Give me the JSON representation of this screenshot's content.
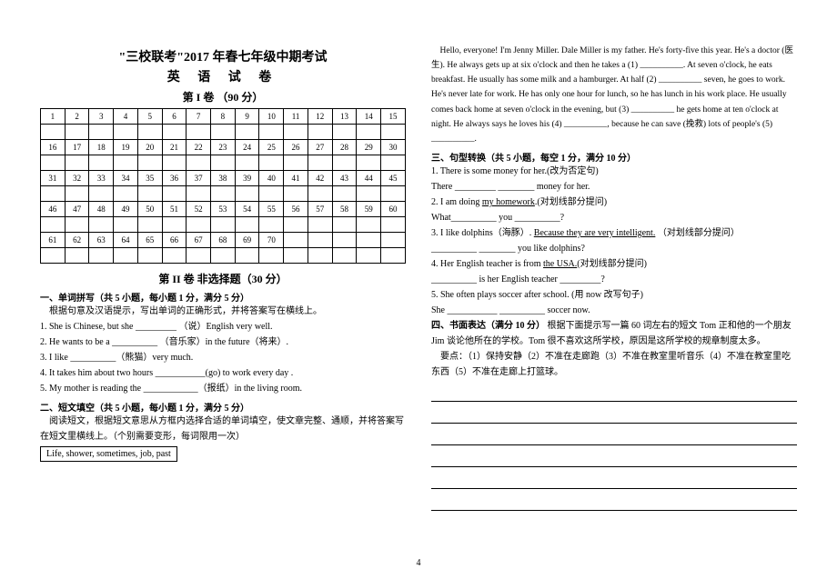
{
  "left": {
    "title1": "\"三校联考\"2017 年春七年级中期考试",
    "title2": "英 语 试 卷",
    "part1_header": "第 I 卷   （90 分）",
    "grid_rows": [
      [
        "1",
        "2",
        "3",
        "4",
        "5",
        "6",
        "7",
        "8",
        "9",
        "10",
        "11",
        "12",
        "13",
        "14",
        "15"
      ],
      [
        "",
        "",
        "",
        "",
        "",
        "",
        "",
        "",
        "",
        "",
        "",
        "",
        "",
        "",
        ""
      ],
      [
        "16",
        "17",
        "18",
        "19",
        "20",
        "21",
        "22",
        "23",
        "24",
        "25",
        "26",
        "27",
        "28",
        "29",
        "30"
      ],
      [
        "",
        "",
        "",
        "",
        "",
        "",
        "",
        "",
        "",
        "",
        "",
        "",
        "",
        "",
        ""
      ],
      [
        "31",
        "32",
        "33",
        "34",
        "35",
        "36",
        "37",
        "38",
        "39",
        "40",
        "41",
        "42",
        "43",
        "44",
        "45"
      ],
      [
        "",
        "",
        "",
        "",
        "",
        "",
        "",
        "",
        "",
        "",
        "",
        "",
        "",
        "",
        ""
      ],
      [
        "46",
        "47",
        "48",
        "49",
        "50",
        "51",
        "52",
        "53",
        "54",
        "55",
        "56",
        "57",
        "58",
        "59",
        "60"
      ],
      [
        "",
        "",
        "",
        "",
        "",
        "",
        "",
        "",
        "",
        "",
        "",
        "",
        "",
        "",
        ""
      ],
      [
        "61",
        "62",
        "63",
        "64",
        "65",
        "66",
        "67",
        "68",
        "69",
        "70",
        "",
        "",
        "",
        "",
        ""
      ],
      [
        "",
        "",
        "",
        "",
        "",
        "",
        "",
        "",
        "",
        "",
        "",
        "",
        "",
        "",
        ""
      ]
    ],
    "part2_header": "第 II 卷   非选择题（30 分）",
    "s1_title": "一、单词拼写（共 5 小题，每小题 1 分，满分 5 分）",
    "s1_intro": "根据句意及汉语提示，写出单词的正确形式，并将答案写在横线上。",
    "s1_q1": "1. She is Chinese, but she _________ （说）English very well.",
    "s1_q2": "2. He wants to  be  a  __________ （音乐家）in the future（将来）.",
    "s1_q3": "3. I  like __________（熊猫）very much.",
    "s1_q4": "4. It takes him about two hours ___________(go) to work  every day .",
    "s1_q5": "5. My mother is  reading the ____________（报纸）in the living room.",
    "s2_title": "二、短文填空（共 5 小题，每小题 1 分，满分 5 分）",
    "s2_intro": "阅读短文，根据短文意思从方框内选择合适的单词填空，使文章完整、通顺，并将答案写在短文里横线上。（个别需要变形，每词限用一次）",
    "s2_wordbox": "Life, shower, sometimes, job, past"
  },
  "right": {
    "passage": "Hello, everyone! I'm Jenny Miller. Dale Miller is my father. He's forty-five this year. He's a doctor (医生). He always gets up at six o'clock and then he takes a (1) __________. At seven o'clock, he eats breakfast. He usually has some milk and a hamburger. At half (2) __________ seven, he goes to work. He's never late for work. He has only one hour for lunch, so he has lunch in his work place. He usually comes back home at seven o'clock in the evening, but (3) __________ he gets home at ten o'clock at night. He always says he loves his (4) __________, because he can save (挽救) lots of people's (5) __________.",
    "s3_title": "三、句型转换（共 5 小题，每空 1 分，满分 10 分）",
    "s3_q1a": "1. There is some money for her.(改为否定句)",
    "s3_q1b": "   There  _________  ________ money for her.",
    "s3_q2a": "2. I am doing ",
    "s3_q2a_u": "my homework",
    "s3_q2a_end": ".(对划线部分提问)",
    "s3_q2b": "   What__________ you __________?",
    "s3_q3a": "3. I like dolphins（海豚）. ",
    "s3_q3a_u": "Because they are very intelligent.",
    "s3_q3a_end": " （对划线部分提问）",
    "s3_q3b": "   __________ ________ you like dolphins?",
    "s3_q4a": "4. Her English teacher is from ",
    "s3_q4a_u": "the USA.",
    "s3_q4a_end": "(对划线部分提问)",
    "s3_q4b": "   __________ is her English teacher _________?",
    "s3_q5a": "5. She often plays soccer after school. (用 now 改写句子)",
    "s3_q5b": "   She ___________ __________ soccer now.",
    "s4_title": "四、书面表达（满分 10 分）",
    "s4_intro1": "  根据下面提示写一篇 60 词左右的短文  Tom 正和他的一个朋友 Jim 谈论他所在的学校。Tom 很不喜欢这所学校，原因是这所学校的规章制度太多。",
    "s4_intro2": "要点：（1）保持安静（2）不准在走廊跑（3）不准在教室里听音乐（4）不准在教室里吃东西（5）不准在走廊上打篮球。"
  },
  "footer": "4",
  "colors": {
    "text": "#000000",
    "bg": "#ffffff",
    "border": "#000000"
  }
}
